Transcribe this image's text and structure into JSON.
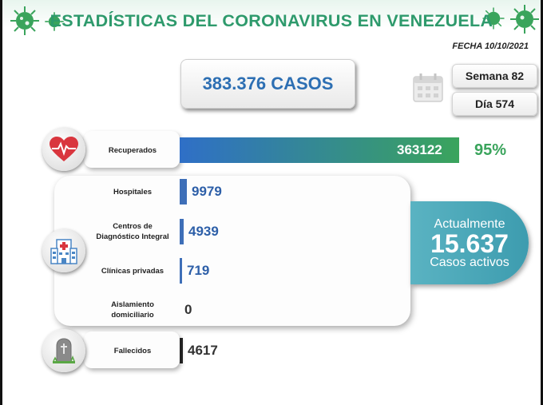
{
  "header": {
    "title": "ESTADÍSTICAS DEL CORONAVIRUS EN VENEZUELA",
    "date": "FECHA 10/10/2021"
  },
  "summary": {
    "total_cases": "383.376 CASOS",
    "week": "Semana 82",
    "day": "Día 574"
  },
  "active": {
    "label_top": "Actualmente",
    "value": "15.637",
    "label_bottom": "Casos activos"
  },
  "recovered_percent": "95%",
  "colors": {
    "title_green": "#2e9a6c",
    "recovered_start": "#2f6fc7",
    "recovered_end": "#3aa45c",
    "value_blue": "#2d5fa8",
    "deaths_black": "#222222",
    "active_teal": "#4aa8b9",
    "percent_green": "#3aa45c"
  },
  "icons": [
    "virus-icon",
    "heart-pulse-icon",
    "hospital-icon",
    "tombstone-icon",
    "calendar-icon"
  ],
  "chart_data": {
    "type": "bar",
    "orientation": "horizontal",
    "title": "",
    "categories": [
      "Recuperados",
      "Hospitales",
      "Centros de Diagnóstico Integral",
      "Clínicas privadas",
      "Aislamiento domiciliario",
      "Fallecidos"
    ],
    "values": [
      363122,
      9979,
      4939,
      719,
      0,
      4617
    ],
    "value_labels": [
      "363122",
      "9979",
      "4939",
      "719",
      "0",
      "4617"
    ],
    "label_lines": [
      [
        "Recuperados"
      ],
      [
        "Hospitales"
      ],
      [
        "Centros de",
        "Diagnóstico Integral"
      ],
      [
        "Clínicas privadas"
      ],
      [
        "Aislamiento",
        "domiciliario"
      ],
      [
        "Fallecidos"
      ]
    ],
    "xlabel": "",
    "ylabel": "",
    "grid": false,
    "legend": "none"
  }
}
